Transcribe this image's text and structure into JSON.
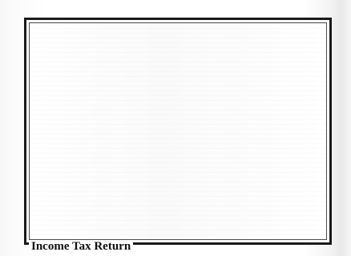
{
  "groupbox": {
    "title": "Income Tax Return"
  }
}
